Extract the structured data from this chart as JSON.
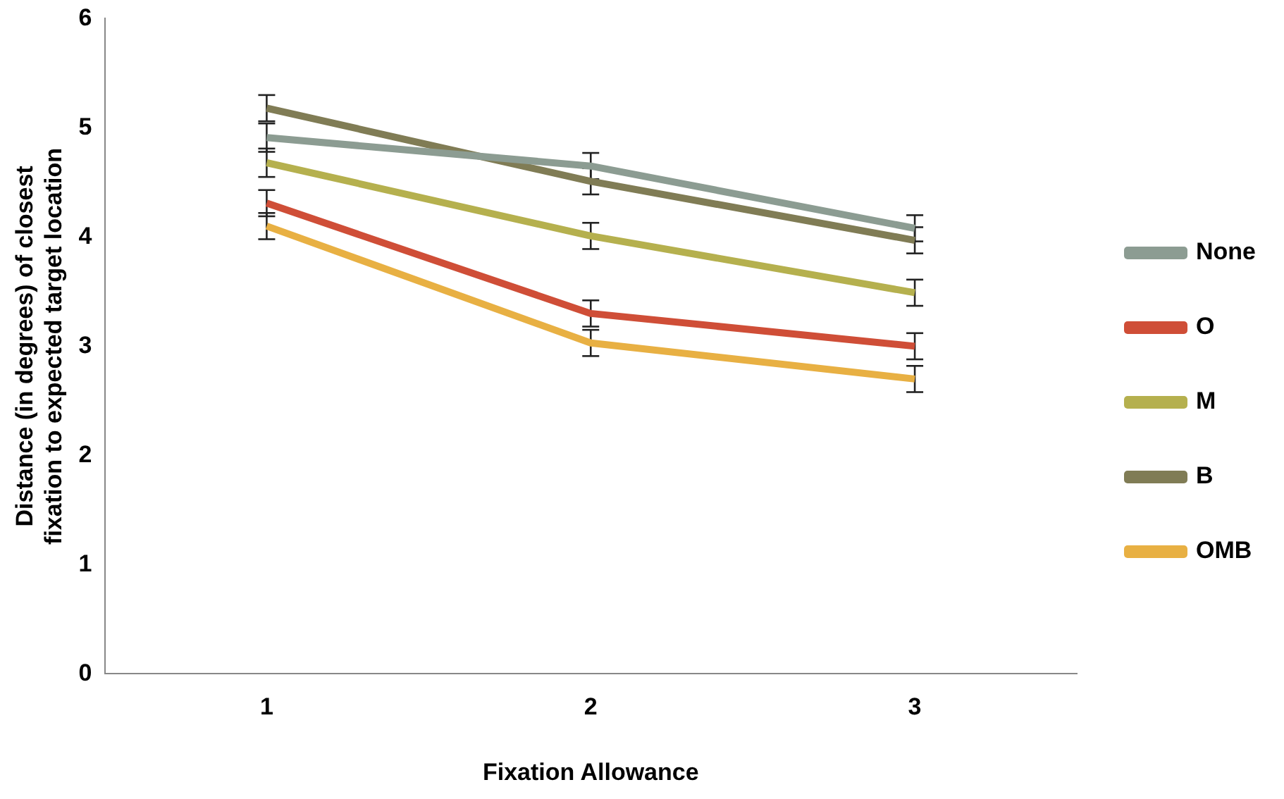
{
  "chart_data": {
    "type": "line",
    "xlabel": "Fixation Allowance",
    "ylabel": "Distance (in degrees) of closest fixation to expected target location",
    "categories": [
      "1",
      "2",
      "3"
    ],
    "ylim": [
      0,
      6
    ],
    "yticks": [
      0,
      1,
      2,
      3,
      4,
      5,
      6
    ],
    "grid": false,
    "legend": "right",
    "marker": "none",
    "series": [
      {
        "name": "None",
        "color": "#8c9c92",
        "values": [
          4.91,
          4.65,
          4.08
        ],
        "errors": [
          0.13,
          0.12,
          0.12
        ]
      },
      {
        "name": "O",
        "color": "#cf4e37",
        "values": [
          4.31,
          3.3,
          3.0
        ],
        "errors": [
          0.12,
          0.12,
          0.12
        ]
      },
      {
        "name": "M",
        "color": "#b5b04e",
        "values": [
          4.68,
          4.01,
          3.49
        ],
        "errors": [
          0.13,
          0.12,
          0.12
        ]
      },
      {
        "name": "B",
        "color": "#807c55",
        "values": [
          5.18,
          4.51,
          3.97
        ],
        "errors": [
          0.12,
          0.12,
          0.12
        ]
      },
      {
        "name": "OMB",
        "color": "#e8b043",
        "values": [
          4.1,
          3.03,
          2.7
        ],
        "errors": [
          0.12,
          0.12,
          0.12
        ]
      }
    ]
  }
}
